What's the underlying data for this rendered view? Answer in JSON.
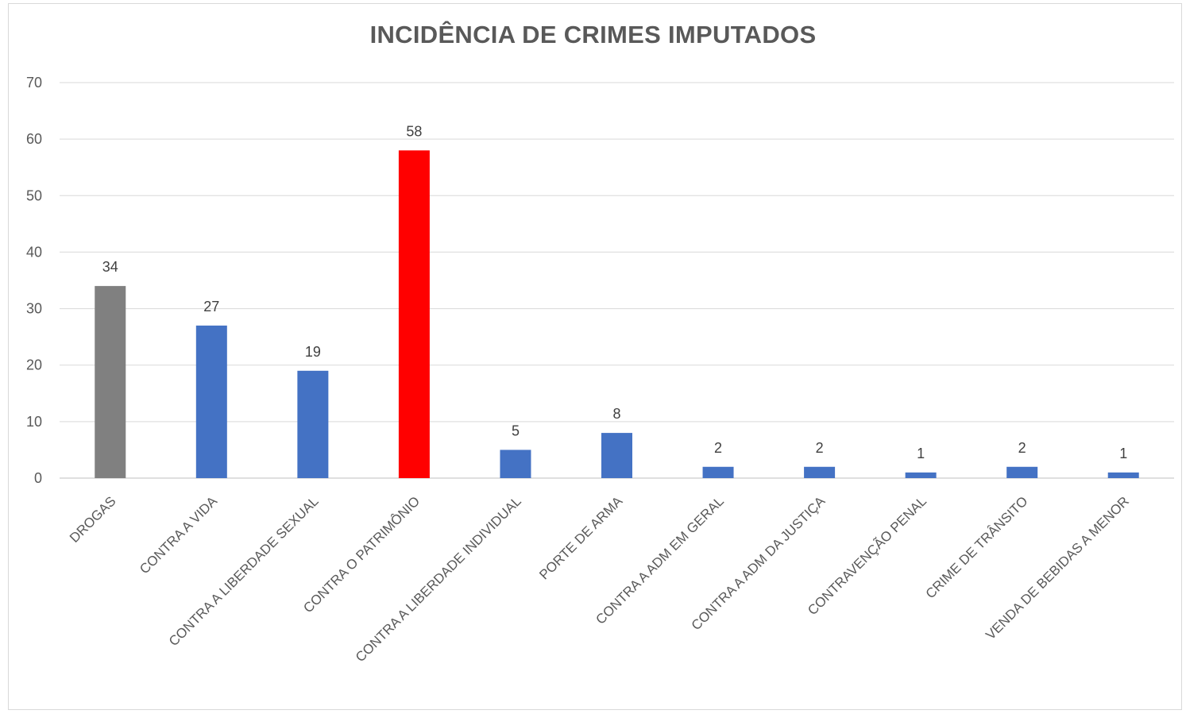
{
  "chart_data": {
    "type": "bar",
    "title": "INCIDÊNCIA  DE CRIMES IMPUTADOS",
    "categories": [
      "DROGAS",
      "CONTRA A VIDA",
      "CONTRA A LIBERDADE SEXUAL",
      "CONTRA O PATRIMÔNIO",
      "CONTRA A LIBERDADE INDIVIDUAL",
      "PORTE DE ARMA",
      "CONTRA A ADM EM GERAL",
      "CONTRA A ADM DA JUSTIÇA",
      "CONTRAVENÇÃO PENAL",
      "CRIME DE TRÂNSITO",
      "VENDA DE BEBIDAS A MENOR"
    ],
    "values": [
      34,
      27,
      19,
      58,
      5,
      8,
      2,
      2,
      1,
      2,
      1
    ],
    "bar_colors": [
      "#808080",
      "#4472c4",
      "#4472c4",
      "#ff0000",
      "#4472c4",
      "#4472c4",
      "#4472c4",
      "#4472c4",
      "#4472c4",
      "#4472c4",
      "#4472c4"
    ],
    "ylim": [
      0,
      70
    ],
    "yticks": [
      0,
      10,
      20,
      30,
      40,
      50,
      60,
      70
    ],
    "grid": true,
    "data_labels": true,
    "xlabel": "",
    "ylabel": ""
  }
}
